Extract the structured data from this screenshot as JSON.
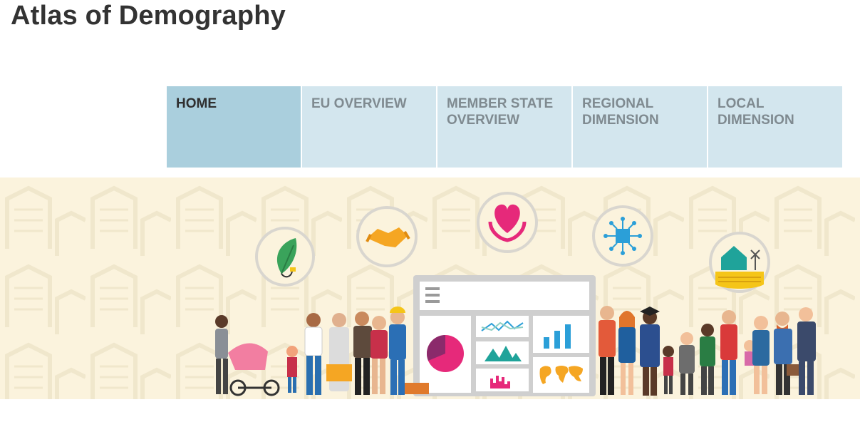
{
  "site": {
    "title": "Atlas of Demography"
  },
  "nav": {
    "items": [
      {
        "label": "HOME",
        "active": true
      },
      {
        "label": "EU OVERVIEW",
        "active": false
      },
      {
        "label": "MEMBER STATE OVERVIEW",
        "active": false
      },
      {
        "label": "REGIONAL DIMENSION",
        "active": false
      },
      {
        "label": "LOCAL DIMENSION",
        "active": false
      }
    ]
  },
  "banner": {
    "icons": [
      "leaf-plug-icon",
      "handshake-icon",
      "heart-hands-icon",
      "circuit-chip-icon",
      "house-windmill-icon"
    ],
    "colors": {
      "background": "#fbf3dd",
      "accent_pink": "#e6297a",
      "accent_blue": "#2b9fd8",
      "accent_orange": "#f5a623",
      "accent_green": "#3aa35b",
      "accent_teal": "#1fa39a"
    }
  }
}
